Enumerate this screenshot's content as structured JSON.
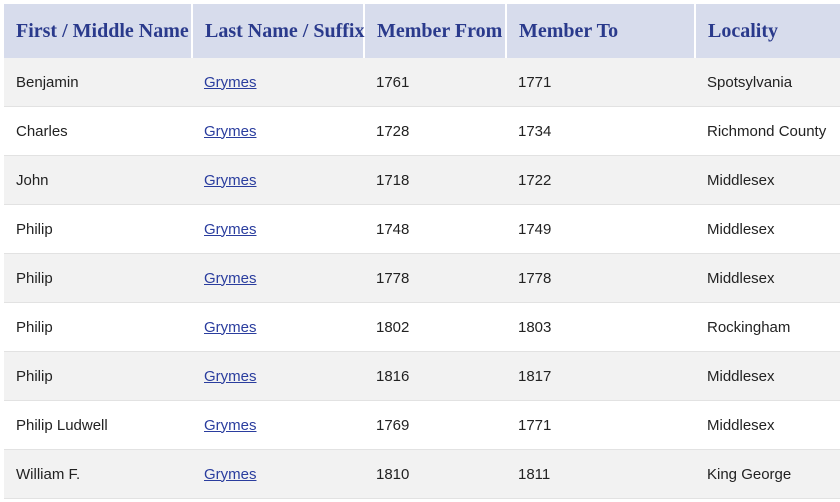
{
  "table": {
    "headers": [
      "First / Middle Name",
      "Last Name / Suffix",
      "Member From",
      "Member To",
      "Locality"
    ],
    "rows": [
      [
        "Benjamin",
        "Grymes",
        "1761",
        "1771",
        "Spotsylvania"
      ],
      [
        "Charles",
        "Grymes",
        "1728",
        "1734",
        "Richmond County"
      ],
      [
        "John",
        "Grymes",
        "1718",
        "1722",
        "Middlesex"
      ],
      [
        "Philip",
        "Grymes",
        "1748",
        "1749",
        "Middlesex"
      ],
      [
        "Philip",
        "Grymes",
        "1778",
        "1778",
        "Middlesex"
      ],
      [
        "Philip",
        "Grymes",
        "1802",
        "1803",
        "Rockingham"
      ],
      [
        "Philip",
        "Grymes",
        "1816",
        "1817",
        "Middlesex"
      ],
      [
        "Philip Ludwell",
        "Grymes",
        "1769",
        "1771",
        "Middlesex"
      ],
      [
        "William F.",
        "Grymes",
        "1810",
        "1811",
        "King George"
      ]
    ]
  },
  "colors": {
    "header_bg": "#d7dcec",
    "header_text": "#2a3a8c",
    "stripe": "#f2f2f2",
    "link": "#2a3d9e"
  }
}
